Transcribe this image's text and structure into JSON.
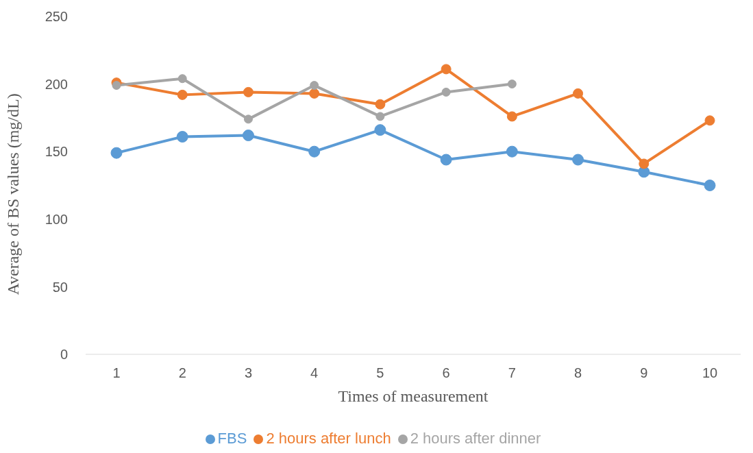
{
  "chart_data": {
    "type": "line",
    "xlabel": "Times of measurement",
    "ylabel": "Average of BS values (mg/dL)",
    "categories": [
      "1",
      "2",
      "3",
      "4",
      "5",
      "6",
      "7",
      "8",
      "9",
      "10"
    ],
    "series": [
      {
        "name": "FBS",
        "color": "#5b9bd5",
        "values": [
          149,
          161,
          162,
          150,
          166,
          144,
          150,
          144,
          135,
          125
        ]
      },
      {
        "name": "2 hours after lunch",
        "color": "#ed7d31",
        "values": [
          201,
          192,
          194,
          193,
          185,
          211,
          176,
          193,
          141,
          173
        ]
      },
      {
        "name": "2 hours after dinner",
        "color": "#a5a5a5",
        "values": [
          199,
          204,
          174,
          199,
          176,
          194,
          200,
          null,
          null,
          null
        ]
      }
    ],
    "ylim": [
      0,
      250
    ],
    "yticks": [
      0,
      50,
      100,
      150,
      200,
      250
    ],
    "grid": false,
    "legend": "bottom",
    "marker": "circle",
    "line_style": "solid"
  }
}
